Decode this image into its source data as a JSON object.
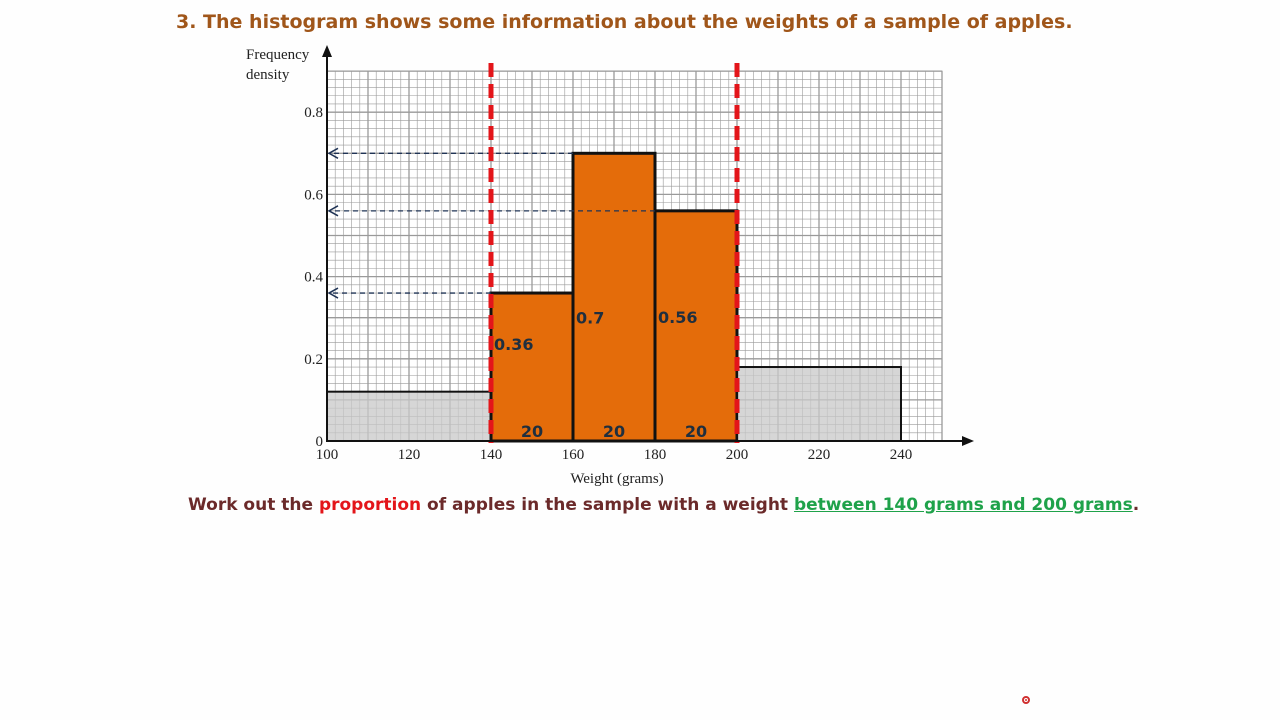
{
  "question": {
    "title": "3.  The histogram shows some information about the weights of a sample of apples.",
    "text_part1": "Work out the ",
    "text_keyword": "proportion",
    "text_part2": " of apples in the sample with a weight ",
    "text_range": "between 140 grams and 200 grams",
    "text_end": "."
  },
  "colors": {
    "highlight_bar": "#e46c0a",
    "shaded_bar": "#c8c8c8",
    "grid": "#9a9a9a",
    "boundary_dash": "#e3151a",
    "guide_arrow": "#1f3355"
  },
  "chart_data": {
    "type": "bar",
    "ylabel_line1": "Frequency",
    "ylabel_line2": "density",
    "xlabel": "Weight (grams)",
    "xlim": [
      100,
      250
    ],
    "ylim": [
      0,
      0.9
    ],
    "x_ticks": [
      "100",
      "120",
      "140",
      "160",
      "180",
      "200",
      "220",
      "240"
    ],
    "y_ticks": [
      "0",
      "0.2",
      "0.4",
      "0.6",
      "0.8"
    ],
    "grid": true,
    "bars": [
      {
        "x0": 100,
        "x1": 140,
        "value": 0.12,
        "highlight": false,
        "label": "",
        "width_label": ""
      },
      {
        "x0": 140,
        "x1": 160,
        "value": 0.36,
        "highlight": true,
        "label": "0.36",
        "width_label": "20"
      },
      {
        "x0": 160,
        "x1": 180,
        "value": 0.7,
        "highlight": true,
        "label": "0.7",
        "width_label": "20"
      },
      {
        "x0": 180,
        "x1": 200,
        "value": 0.56,
        "highlight": true,
        "label": "0.56",
        "width_label": "20"
      },
      {
        "x0": 200,
        "x1": 240,
        "value": 0.18,
        "highlight": false,
        "label": "",
        "width_label": ""
      }
    ],
    "boundaries": [
      140,
      200
    ],
    "guide_arrows": [
      {
        "from_x": 160,
        "y": 0.7
      },
      {
        "from_x": 180,
        "y": 0.56
      },
      {
        "from_x": 140,
        "y": 0.36
      }
    ]
  }
}
